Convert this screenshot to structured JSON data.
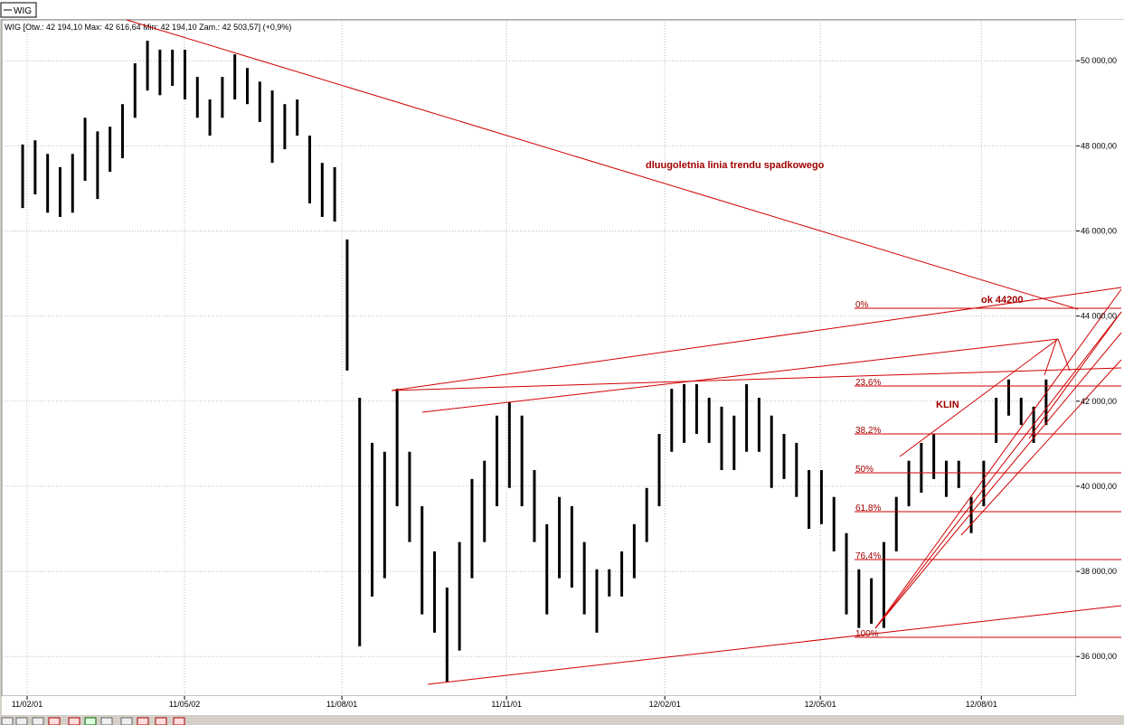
{
  "tab": "WIG",
  "chart_data": {
    "type": "range",
    "header": "WIG [Otw.: 42 194,10  Max: 42 616,64  Min: 42 194,10  Zam.: 42 503,57] (+0,9%)",
    "color": "#000000",
    "high": [
      48030,
      48130,
      47810,
      47500,
      47810,
      48660,
      48340,
      48450,
      48980,
      49940,
      50470,
      50260,
      50260,
      50260,
      49620,
      49090,
      49620,
      50150,
      49830,
      49510,
      49300,
      48980,
      49090,
      48240,
      47600,
      47500,
      45800,
      42080,
      41020,
      40810,
      42290,
      40810,
      39530,
      38470,
      37620,
      38690,
      40170,
      40600,
      41660,
      41980,
      41660,
      40380,
      39110,
      39750,
      39530,
      38690,
      38050,
      38050,
      38470,
      39110,
      39960,
      41230,
      42290,
      42400,
      42400,
      42080,
      41870,
      41660,
      42400,
      42080,
      41660,
      41230,
      41020,
      40380,
      40380,
      39750,
      38900,
      38050,
      37840,
      38690,
      39750,
      40600,
      41020,
      41230,
      40600,
      40600,
      39750,
      40600,
      42080,
      42510,
      42080,
      41870,
      42510
    ],
    "low": [
      46540,
      46860,
      46430,
      46330,
      46430,
      47180,
      46750,
      47390,
      47710,
      48660,
      49300,
      49190,
      49410,
      49090,
      48660,
      48240,
      48660,
      49090,
      48980,
      48560,
      47600,
      47920,
      48240,
      46650,
      46330,
      46220,
      42720,
      36240,
      37410,
      37840,
      39530,
      38690,
      36990,
      36560,
      35390,
      36140,
      37840,
      38690,
      39530,
      39960,
      39530,
      38690,
      36990,
      37840,
      37620,
      36990,
      36560,
      37410,
      37410,
      37840,
      38690,
      39530,
      40810,
      41020,
      41230,
      41020,
      40380,
      40380,
      40810,
      40810,
      39960,
      40170,
      39750,
      39000,
      39110,
      38470,
      36990,
      36670,
      36770,
      36670,
      38470,
      39530,
      39850,
      40170,
      39750,
      39960,
      38900,
      39530,
      41020,
      41660,
      41440,
      41020,
      41440
    ],
    "xlim": [
      -1.67,
      84.4
    ],
    "xticks": [
      {
        "value": 0.36,
        "label": "11/02/01"
      },
      {
        "value": 12.97,
        "label": "11/05/02"
      },
      {
        "value": 25.58,
        "label": "11/08/01"
      },
      {
        "value": 38.77,
        "label": "11/11/01"
      },
      {
        "value": 51.45,
        "label": "12/02/01"
      },
      {
        "value": 63.91,
        "label": "12/05/01"
      },
      {
        "value": 76.81,
        "label": "12/08/01"
      }
    ],
    "ylim": [
      35070,
      50960
    ],
    "yticks": [
      {
        "value": 36000,
        "label": "36 000,00"
      },
      {
        "value": 38000,
        "label": "38 000,00"
      },
      {
        "value": 40000,
        "label": "40 000,00"
      },
      {
        "value": 42000,
        "label": "42 000,00"
      },
      {
        "value": 44000,
        "label": "44 000,00"
      },
      {
        "value": 46000,
        "label": "46 000,00"
      },
      {
        "value": 48000,
        "label": "48 000,00"
      },
      {
        "value": 50000,
        "label": "50 000,00"
      }
    ],
    "grid": true,
    "annotations": [
      "dluugoletnia linia trendu spadkowego",
      "ok 44200",
      "KLIN"
    ],
    "fib_labels": [
      "0%",
      "23,6%",
      "38,2%",
      "50%",
      "61,8%",
      "76,4%",
      "100%"
    ]
  }
}
